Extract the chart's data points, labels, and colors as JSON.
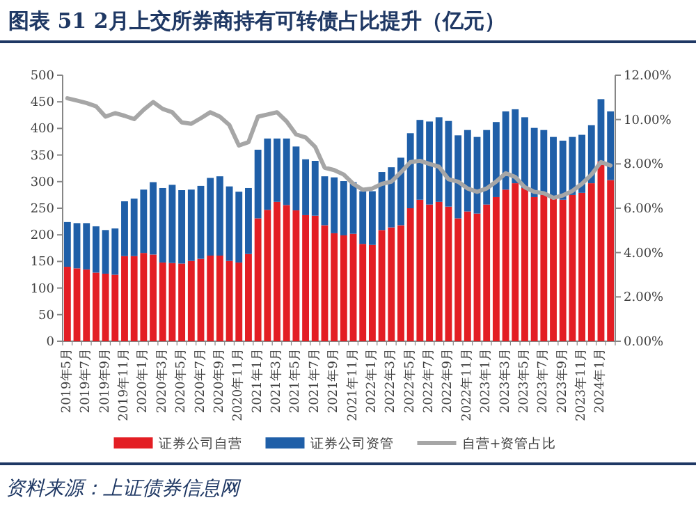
{
  "chart_data": {
    "type": "bar",
    "title": "图表 51   2月上交所券商持有可转债占比提升（亿元）",
    "stacked": true,
    "legend": "bottom",
    "categories": [
      "2019年5月",
      null,
      "2019年7月",
      null,
      "2019年9月",
      null,
      "2019年11月",
      null,
      "2020年1月",
      null,
      "2020年3月",
      null,
      "2020年5月",
      null,
      "2020年7月",
      null,
      "2020年9月",
      null,
      "2020年11月",
      null,
      "2021年1月",
      null,
      "2021年3月",
      null,
      "2021年5月",
      null,
      "2021年7月",
      null,
      "2021年9月",
      null,
      "2021年11月",
      null,
      "2022年1月",
      null,
      "2022年3月",
      null,
      "2022年5月",
      null,
      "2022年7月",
      null,
      "2022年9月",
      null,
      "2022年11月",
      null,
      "2023年1月",
      null,
      "2023年3月",
      null,
      "2023年5月",
      null,
      "2023年7月",
      null,
      "2023年9月",
      null,
      "2023年11月",
      null,
      "2024年1月",
      null
    ],
    "series": [
      {
        "name": "证券公司自营",
        "color": "#e31e24",
        "values": [
          140,
          137,
          135,
          129,
          127,
          125,
          160,
          160,
          166,
          163,
          148,
          147,
          146,
          151,
          155,
          161,
          161,
          151,
          148,
          164,
          231,
          247,
          262,
          256,
          246,
          237,
          236,
          218,
          203,
          199,
          202,
          183,
          181,
          209,
          214,
          218,
          250,
          266,
          257,
          262,
          253,
          231,
          244,
          240,
          257,
          271,
          285,
          297,
          288,
          271,
          275,
          271,
          266,
          275,
          279,
          297,
          338,
          303
        ]
      },
      {
        "name": "证券公司资管",
        "color": "#1f5fa8",
        "values": [
          84,
          85,
          87,
          87,
          82,
          87,
          103,
          108,
          119,
          136,
          140,
          147,
          138,
          134,
          137,
          146,
          149,
          140,
          133,
          124,
          129,
          134,
          119,
          125,
          120,
          105,
          103,
          92,
          105,
          102,
          97,
          99,
          101,
          109,
          113,
          127,
          141,
          150,
          156,
          159,
          161,
          156,
          153,
          144,
          140,
          141,
          147,
          139,
          133,
          130,
          122,
          113,
          111,
          109,
          109,
          109,
          117,
          129
        ]
      },
      {
        "name": "自营+资管占比",
        "type": "line",
        "axis": "y2",
        "color": "#a6a6a6",
        "values": [
          10.96,
          10.86,
          10.75,
          10.6,
          10.13,
          10.29,
          10.17,
          10.02,
          10.44,
          10.79,
          10.48,
          10.33,
          9.87,
          9.81,
          10.06,
          10.33,
          10.13,
          9.75,
          8.83,
          8.98,
          10.13,
          10.23,
          10.33,
          9.92,
          9.33,
          9.19,
          8.77,
          7.83,
          7.72,
          7.52,
          7.1,
          6.83,
          6.89,
          7.1,
          7.2,
          7.62,
          8.08,
          8.14,
          8.0,
          7.87,
          7.31,
          7.2,
          6.89,
          6.74,
          6.89,
          7.2,
          7.58,
          7.41,
          6.95,
          6.74,
          6.68,
          6.47,
          6.58,
          6.78,
          7.1,
          7.52,
          8.08,
          7.93
        ]
      }
    ],
    "ylim": [
      0,
      500
    ],
    "yticks": [
      0,
      50,
      100,
      150,
      200,
      250,
      300,
      350,
      400,
      450,
      500
    ],
    "y2lim": [
      0,
      12
    ],
    "y2ticks": [
      {
        "value": 0,
        "label": "0.00%"
      },
      {
        "value": 2,
        "label": "2.00%"
      },
      {
        "value": 4,
        "label": "4.00%"
      },
      {
        "value": 6,
        "label": "6.00%"
      },
      {
        "value": 8,
        "label": "8.00%"
      },
      {
        "value": 10,
        "label": "10.00%"
      },
      {
        "value": 12,
        "label": "12.00%"
      }
    ],
    "annotations": [
      "资料来源：上证债券信息网"
    ]
  }
}
